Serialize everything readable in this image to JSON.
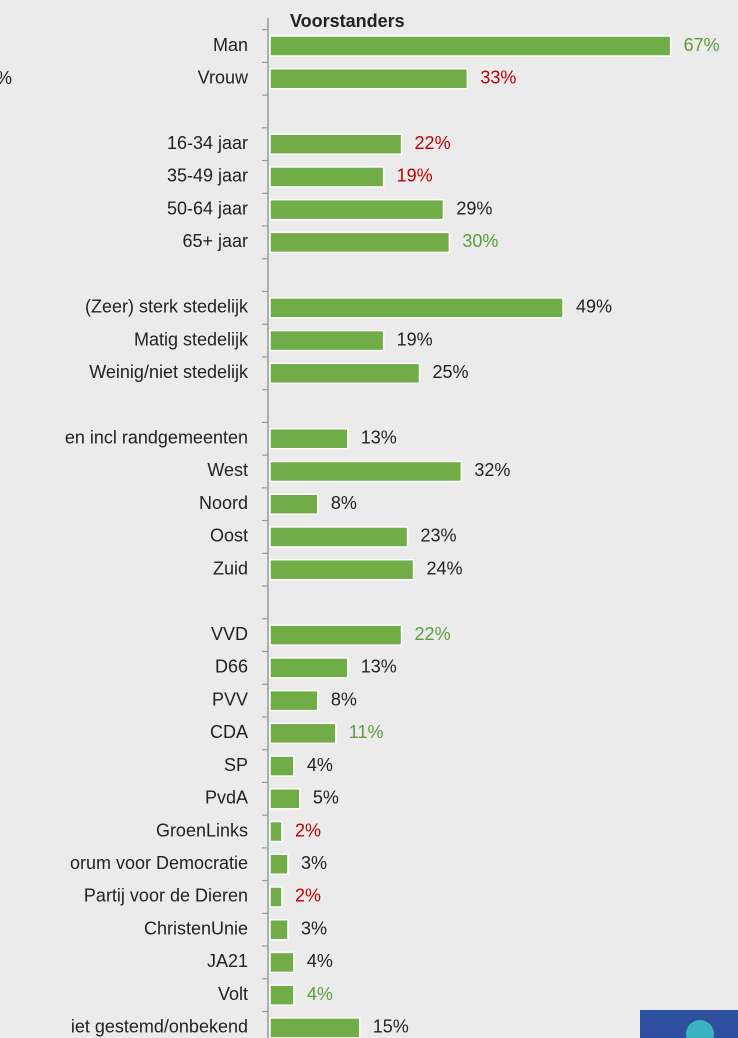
{
  "chart_data": {
    "type": "barh",
    "title": "Voorstanders",
    "fragment": "%",
    "categories": [
      "Man",
      "Vrouw",
      null,
      "16-34 jaar",
      "35-49 jaar",
      "50-64 jaar",
      "65+ jaar",
      null,
      "(Zeer) sterk stedelijk",
      "Matig stedelijk",
      "Weinig/niet stedelijk",
      null,
      "en incl randgemeenten",
      "West",
      "Noord",
      "Oost",
      "Zuid",
      null,
      "VVD",
      "D66",
      "PVV",
      "CDA",
      "SP",
      "PvdA",
      "GroenLinks",
      "orum voor Democratie",
      "Partij voor de Dieren",
      "ChristenUnie",
      "JA21",
      "Volt",
      "iet gestemd/onbekend"
    ],
    "values": [
      67,
      33,
      null,
      22,
      19,
      29,
      30,
      null,
      49,
      19,
      25,
      null,
      13,
      32,
      8,
      23,
      24,
      null,
      22,
      13,
      8,
      11,
      4,
      5,
      2,
      3,
      2,
      3,
      4,
      4,
      15
    ],
    "value_labels": [
      "67%",
      "33%",
      null,
      "22%",
      "19%",
      "29%",
      "30%",
      null,
      "49%",
      "19%",
      "25%",
      null,
      "13%",
      "32%",
      "8%",
      "23%",
      "24%",
      null,
      "22%",
      "13%",
      "8%",
      "11%",
      "4%",
      "5%",
      "2%",
      "3%",
      "2%",
      "3%",
      "4%",
      "4%",
      "15%"
    ],
    "label_colors": [
      "#5e9a3c",
      "#c00000",
      null,
      "#c00000",
      "#c00000",
      "#222222",
      "#5e9a3c",
      null,
      "#222222",
      "#222222",
      "#222222",
      null,
      "#222222",
      "#222222",
      "#222222",
      "#222222",
      "#222222",
      null,
      "#5e9a3c",
      "#222222",
      "#222222",
      "#5e9a3c",
      "#222222",
      "#222222",
      "#c00000",
      "#222222",
      "#c00000",
      "#222222",
      "#222222",
      "#5e9a3c",
      "#222222"
    ],
    "color": "#70ad47",
    "xlim": [
      0,
      100
    ]
  }
}
